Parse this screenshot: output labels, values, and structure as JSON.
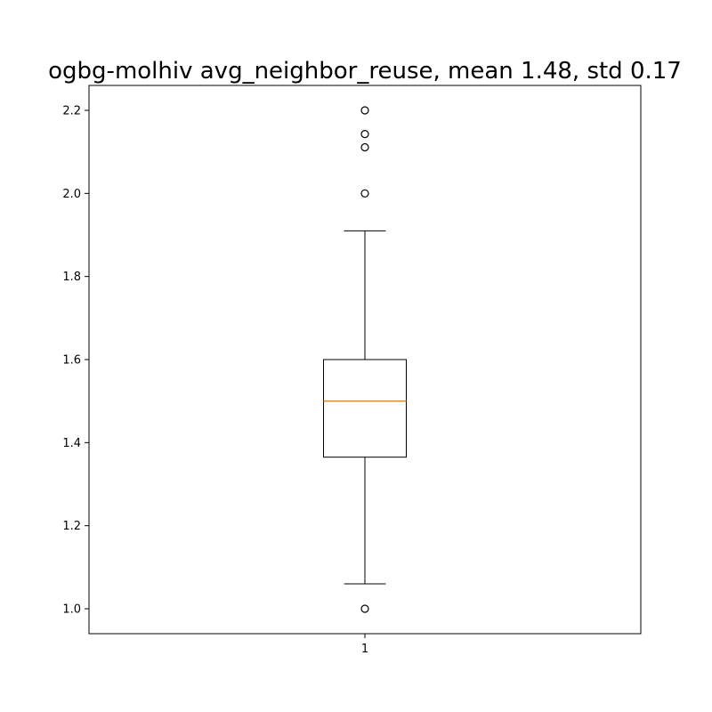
{
  "chart_data": {
    "type": "box",
    "title": "ogbg-molhiv avg_neighbor_reuse, mean 1.48, std 0.17",
    "xlabel": "",
    "ylabel": "",
    "categories": [
      "1"
    ],
    "ylim": [
      0.94,
      2.26
    ],
    "yticks": [
      1.0,
      1.2,
      1.4,
      1.6,
      1.8,
      2.0,
      2.2
    ],
    "ytick_labels": [
      "1.0",
      "1.2",
      "1.4",
      "1.6",
      "1.8",
      "2.0",
      "2.2"
    ],
    "grid": false,
    "legend": "none",
    "boxes": [
      {
        "label": "1",
        "whisker_low": 1.06,
        "q1": 1.365,
        "median": 1.5,
        "q3": 1.6,
        "whisker_high": 1.91,
        "outliers": [
          1.0,
          2.0,
          2.111,
          2.143,
          2.2
        ]
      }
    ],
    "colors": {
      "box": "#000000",
      "median": "#ff7f0e",
      "outlier": "#000000"
    }
  }
}
